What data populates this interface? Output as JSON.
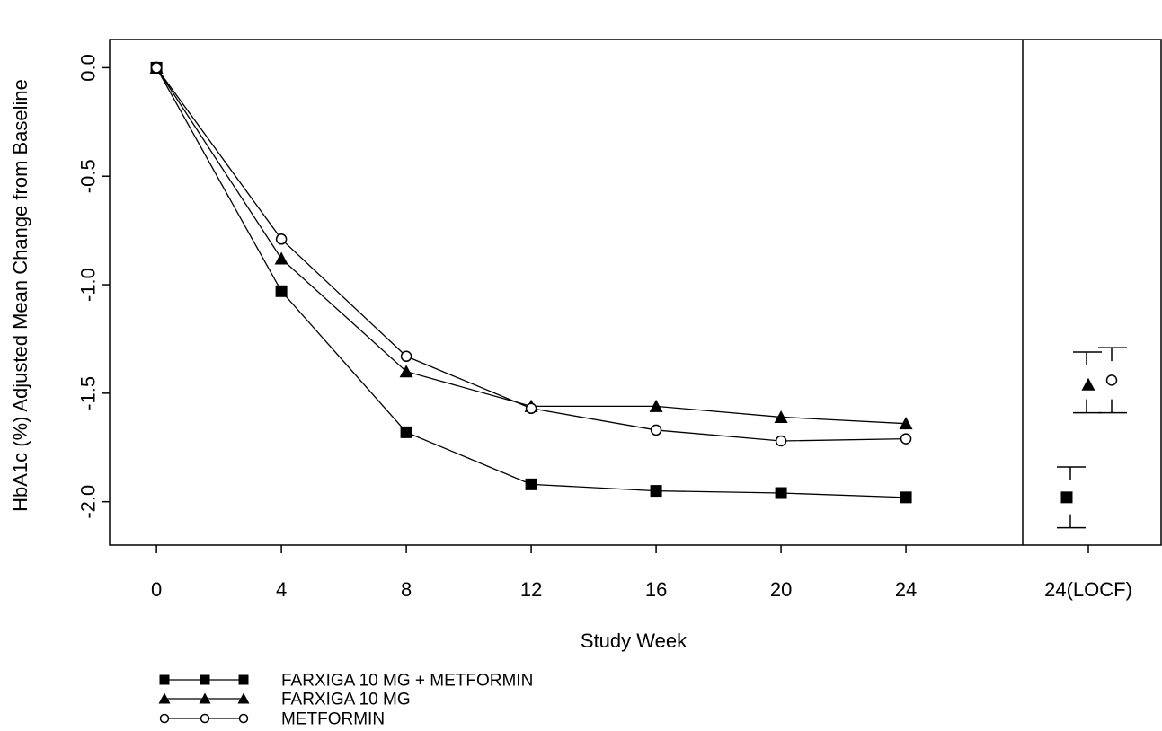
{
  "chart_data": {
    "type": "line",
    "xlabel": "Study Week",
    "ylabel": "HbA1c (%) Adjusted Mean Change from Baseline",
    "x": [
      0,
      4,
      8,
      12,
      16,
      20,
      24
    ],
    "x_tick_labels": [
      "0",
      "4",
      "8",
      "12",
      "16",
      "20",
      "24"
    ],
    "locf_label": "24(LOCF)",
    "y_tick_labels": [
      "0.0",
      "-0.5",
      "-1.0",
      "-1.5",
      "-2.0"
    ],
    "y_ticks": [
      0.0,
      -0.5,
      -1.0,
      -1.5,
      -2.0
    ],
    "ylim": [
      -2.2,
      0.13
    ],
    "xlim": [
      -1.5,
      32.2
    ],
    "grid": false,
    "legend_position": "bottom-left",
    "series": [
      {
        "name": "FARXIGA 10 MG + METFORMIN",
        "marker": "filled-square",
        "values": [
          0.0,
          -1.03,
          -1.68,
          -1.92,
          -1.95,
          -1.96,
          -1.98
        ],
        "locf": {
          "mean": -1.98,
          "lower": -2.12,
          "upper": -1.84
        }
      },
      {
        "name": "FARXIGA 10 MG",
        "marker": "filled-triangle",
        "values": [
          0.0,
          -0.88,
          -1.4,
          -1.56,
          -1.56,
          -1.61,
          -1.64
        ],
        "locf": {
          "mean": -1.46,
          "lower": -1.59,
          "upper": -1.31
        }
      },
      {
        "name": "METFORMIN",
        "marker": "open-circle",
        "values": [
          0.0,
          -0.79,
          -1.33,
          -1.57,
          -1.67,
          -1.72,
          -1.71
        ],
        "locf": {
          "mean": -1.44,
          "lower": -1.59,
          "upper": -1.29
        }
      }
    ]
  }
}
